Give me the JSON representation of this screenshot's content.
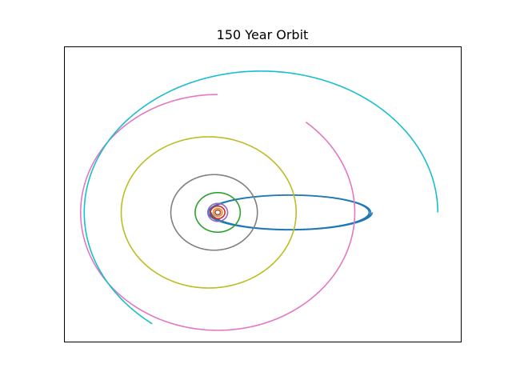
{
  "chart_data": {
    "type": "line",
    "title": "150 Year Orbit",
    "xlabel": "",
    "ylabel": "",
    "xlim": [
      -8.5,
      13.5
    ],
    "ylim": [
      -7.2,
      9.2
    ],
    "grid": false,
    "ticks_visible": false,
    "legend": "none",
    "series": [
      {
        "color": "#1f77b4",
        "kind": "ellipse",
        "cx": 4.0,
        "cy": 0.0,
        "a": 4.35,
        "b": 0.95,
        "rot": 0.0,
        "start": 180,
        "sweep": 900,
        "offset": [
          0.0,
          0.0
        ]
      },
      {
        "color": "#ff7f0e",
        "kind": "ellipse",
        "cx": 0.0,
        "cy": 0.0,
        "a": 0.25,
        "b": 0.22,
        "rot": 0,
        "start": 0,
        "sweep": 360
      },
      {
        "color": "#2ca02c",
        "kind": "ellipse",
        "cx": 0.0,
        "cy": 0.0,
        "a": 1.25,
        "b": 1.1,
        "rot": 0,
        "start": 0,
        "sweep": 360
      },
      {
        "color": "#d62728",
        "kind": "ellipse",
        "cx": 0.0,
        "cy": 0.0,
        "a": 0.4,
        "b": 0.35,
        "rot": 0,
        "start": 0,
        "sweep": 360
      },
      {
        "color": "#9467bd",
        "kind": "ellipse",
        "cx": 0.0,
        "cy": 0.0,
        "a": 0.55,
        "b": 0.5,
        "rot": 0,
        "start": 0,
        "sweep": 360
      },
      {
        "color": "#8c564b",
        "kind": "ellipse",
        "cx": 0.0,
        "cy": 0.0,
        "a": 0.15,
        "b": 0.13,
        "rot": 0,
        "start": 0,
        "sweep": 360
      },
      {
        "color": "#7f7f7f",
        "kind": "ellipse",
        "cx": -0.2,
        "cy": 0.0,
        "a": 2.4,
        "b": 2.1,
        "rot": 0,
        "start": 0,
        "sweep": 360
      },
      {
        "color": "#bcbd22",
        "kind": "ellipse",
        "cx": -0.5,
        "cy": 0.0,
        "a": 4.85,
        "b": 4.2,
        "rot": 0,
        "start": 0,
        "sweep": 360
      },
      {
        "color": "#e377c2",
        "kind": "ellipse",
        "cx": 0.0,
        "cy": 0.0,
        "a": 7.6,
        "b": 6.55,
        "rot": 0,
        "start": 90,
        "sweep": 320
      },
      {
        "color": "#17becf",
        "kind": "ellipse",
        "cx": 2.4,
        "cy": 0.0,
        "a": 9.8,
        "b": 7.85,
        "rot": 0,
        "start": 0,
        "sweep": 232
      }
    ]
  }
}
